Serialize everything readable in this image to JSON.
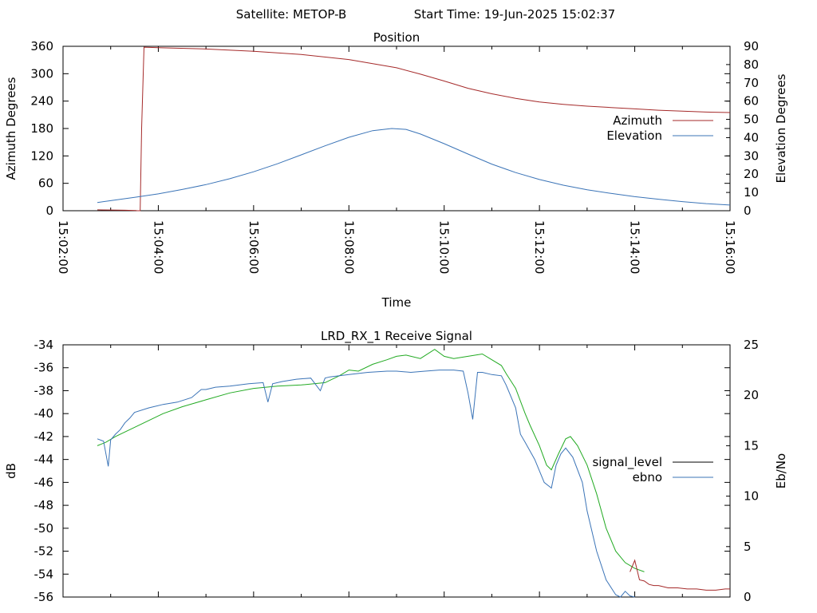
{
  "header": {
    "satellite_label": "Satellite: METOP-B",
    "start_time_label": "Start Time: 19-Jun-2025 15:02:37"
  },
  "chart_data": [
    {
      "type": "line",
      "title": "Position",
      "xlabel": "Time",
      "ylabel": "Azimuth Degrees",
      "y2label": "Elevation Degrees",
      "x_ticks": [
        "15:02:00",
        "15:04:00",
        "15:06:00",
        "15:08:00",
        "15:10:00",
        "15:12:00",
        "15:14:00",
        "15:16:00"
      ],
      "x_minutes_range": [
        0,
        14
      ],
      "ylim": [
        0,
        360
      ],
      "y_ticks": [
        0,
        60,
        120,
        180,
        240,
        300,
        360
      ],
      "y2lim": [
        0,
        90
      ],
      "y2_ticks": [
        0,
        10,
        20,
        30,
        40,
        50,
        60,
        70,
        80,
        90
      ],
      "legend_position": "right",
      "colors": {
        "azimuth": "#a52a2a",
        "elevation": "#3b74b7"
      },
      "series": [
        {
          "name": "Azimuth",
          "axis": "left",
          "x": [
            0.72,
            1.0,
            1.3,
            1.53,
            1.55,
            1.62,
            1.65,
            1.7,
            2.0,
            3.0,
            4.0,
            5.0,
            6.0,
            7.0,
            7.5,
            8.0,
            8.5,
            9.0,
            9.5,
            10.0,
            10.5,
            11.0,
            11.5,
            12.0,
            12.5,
            13.0,
            13.5,
            14.0
          ],
          "y": [
            2,
            1.5,
            1,
            0.5,
            0,
            0,
            180,
            358,
            357,
            354,
            349,
            342,
            331,
            313,
            299,
            284,
            268,
            256,
            246,
            238,
            233,
            229,
            226,
            223,
            220,
            218,
            216,
            215
          ]
        },
        {
          "name": "Elevation",
          "axis": "right",
          "x": [
            0.72,
            1.0,
            1.5,
            2.0,
            2.5,
            3.0,
            3.5,
            4.0,
            4.5,
            5.0,
            5.5,
            6.0,
            6.5,
            6.9,
            7.2,
            7.5,
            8.0,
            8.5,
            9.0,
            9.5,
            10.0,
            10.5,
            11.0,
            11.5,
            12.0,
            12.5,
            13.0,
            13.5,
            14.0
          ],
          "y": [
            4.5,
            5.5,
            7.3,
            9.2,
            11.6,
            14.3,
            17.5,
            21.3,
            25.7,
            30.6,
            35.5,
            40.2,
            43.8,
            45.0,
            44.5,
            42.0,
            36.7,
            31.0,
            25.5,
            20.9,
            17.1,
            14.0,
            11.5,
            9.5,
            7.7,
            6.3,
            5.0,
            3.9,
            3.1
          ]
        }
      ]
    },
    {
      "type": "line",
      "title": "LRD_RX_1 Receive Signal",
      "xlabel": "",
      "ylabel": "dB",
      "y2label": "Eb/No",
      "x_ticks": [],
      "x_minutes_range": [
        0,
        14
      ],
      "ylim": [
        -56,
        -34
      ],
      "y_ticks": [
        -34,
        -36,
        -38,
        -40,
        -42,
        -44,
        -46,
        -48,
        -50,
        -52,
        -54,
        -56
      ],
      "y2lim": [
        0,
        25
      ],
      "y2_ticks": [
        0,
        5,
        10,
        15,
        20,
        25
      ],
      "legend_position": "right",
      "colors": {
        "signal_level": "#000000",
        "ebno": "#3b74b7",
        "green": "#22aa22",
        "red": "#a52a2a"
      },
      "legend": [
        "signal_level",
        "ebno"
      ],
      "series": [
        {
          "name": "",
          "color": "green",
          "axis": "left",
          "x": [
            0.72,
            0.9,
            1.1,
            1.3,
            1.5,
            1.8,
            2.1,
            2.5,
            3.0,
            3.5,
            4.0,
            4.5,
            5.0,
            5.5,
            5.8,
            6.0,
            6.2,
            6.5,
            6.8,
            7.0,
            7.2,
            7.5,
            7.8,
            8.0,
            8.2,
            8.5,
            8.8,
            9.0,
            9.2,
            9.3,
            9.5,
            9.7,
            9.8,
            10.0,
            10.15,
            10.25,
            10.4,
            10.55,
            10.65,
            10.8,
            11.0,
            11.2,
            11.4,
            11.6,
            11.8,
            12.0,
            12.2
          ],
          "y": [
            -42.8,
            -42.5,
            -42.0,
            -41.6,
            -41.2,
            -40.6,
            -40.0,
            -39.4,
            -38.8,
            -38.2,
            -37.8,
            -37.6,
            -37.5,
            -37.3,
            -36.7,
            -36.2,
            -36.3,
            -35.7,
            -35.3,
            -35.0,
            -34.9,
            -35.2,
            -34.4,
            -35.0,
            -35.2,
            -35.0,
            -34.8,
            -35.3,
            -35.8,
            -36.5,
            -37.8,
            -40.0,
            -41.0,
            -42.8,
            -44.5,
            -44.9,
            -43.5,
            -42.2,
            -42.0,
            -42.8,
            -44.5,
            -47.0,
            -50.0,
            -52.0,
            -53.0,
            -53.5,
            -53.8
          ]
        },
        {
          "name": "",
          "color": "ebno",
          "axis": "left",
          "x": [
            0.72,
            0.85,
            0.95,
            1.0,
            1.1,
            1.2,
            1.3,
            1.4,
            1.5,
            1.8,
            2.1,
            2.4,
            2.7,
            2.9,
            3.0,
            3.2,
            3.5,
            3.9,
            4.2,
            4.3,
            4.4,
            4.6,
            4.9,
            5.2,
            5.4,
            5.5,
            5.6,
            6.0,
            6.4,
            6.8,
            7.0,
            7.3,
            7.6,
            7.9,
            8.2,
            8.4,
            8.5,
            8.6,
            8.7,
            8.8,
            9.0,
            9.2,
            9.3,
            9.5,
            9.6,
            9.7,
            9.9,
            10.1,
            10.25,
            10.35,
            10.45,
            10.55,
            10.7,
            10.9,
            11.0,
            11.2,
            11.4,
            11.6,
            11.7,
            11.8,
            11.9,
            12.0
          ],
          "y": [
            -42.2,
            -42.4,
            -44.6,
            -42.3,
            -41.8,
            -41.4,
            -40.8,
            -40.4,
            -39.9,
            -39.5,
            -39.2,
            -39.0,
            -38.6,
            -37.9,
            -37.9,
            -37.7,
            -37.6,
            -37.4,
            -37.3,
            -39.0,
            -37.4,
            -37.2,
            -37.0,
            -36.9,
            -38.0,
            -36.9,
            -36.8,
            -36.6,
            -36.4,
            -36.3,
            -36.3,
            -36.4,
            -36.3,
            -36.2,
            -36.2,
            -36.3,
            -38.2,
            -40.5,
            -36.4,
            -36.4,
            -36.6,
            -36.7,
            -37.5,
            -39.5,
            -41.8,
            -42.5,
            -44.0,
            -46.0,
            -46.5,
            -44.5,
            -43.5,
            -43.0,
            -43.8,
            -46.0,
            -48.5,
            -52.0,
            -54.5,
            -55.8,
            -56.0,
            -55.5,
            -55.9,
            -56.0
          ]
        },
        {
          "name": "",
          "color": "red",
          "axis": "left",
          "x": [
            11.9,
            12.0,
            12.1,
            12.2,
            12.3,
            12.4,
            12.5,
            12.7,
            12.9,
            13.1,
            13.3,
            13.5,
            13.7,
            13.9,
            14.0
          ],
          "y": [
            -53.8,
            -52.8,
            -54.5,
            -54.6,
            -54.9,
            -55.0,
            -55.0,
            -55.2,
            -55.2,
            -55.3,
            -55.3,
            -55.4,
            -55.4,
            -55.3,
            -55.3
          ]
        }
      ]
    }
  ]
}
